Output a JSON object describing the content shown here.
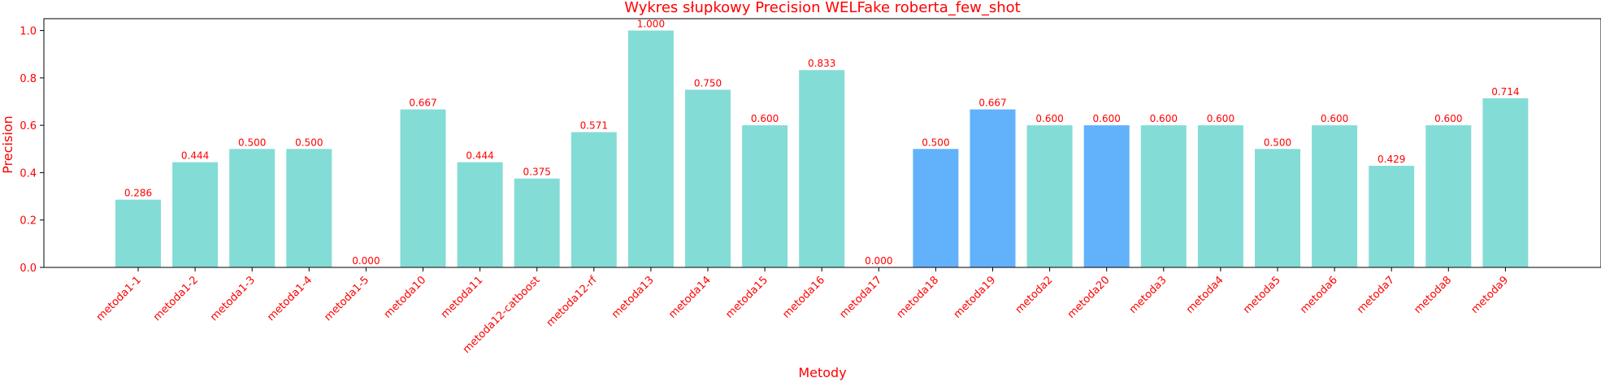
{
  "chart_data": {
    "type": "bar",
    "title": "Wykres słupkowy Precision WELFake roberta_few_shot",
    "xlabel": "Metody",
    "ylabel": "Precision",
    "ylim": [
      0,
      1.05
    ],
    "yticks": [
      "0.0",
      "0.2",
      "0.4",
      "0.6",
      "0.8",
      "1.0"
    ],
    "grid": false,
    "categories": [
      "metoda1-1",
      "metoda1-2",
      "metoda1-3",
      "metoda1-4",
      "metoda1-5",
      "metoda10",
      "metoda11",
      "metoda12-catboost",
      "metoda12-rf",
      "metoda13",
      "metoda14",
      "metoda15",
      "metoda16",
      "metoda17",
      "metoda18",
      "metoda19",
      "metoda2",
      "metoda20",
      "metoda3",
      "metoda4",
      "metoda5",
      "metoda6",
      "metoda7",
      "metoda8",
      "metoda9"
    ],
    "values": [
      0.286,
      0.444,
      0.5,
      0.5,
      0.0,
      0.667,
      0.444,
      0.375,
      0.571,
      1.0,
      0.75,
      0.6,
      0.833,
      0.0,
      0.5,
      0.667,
      0.6,
      0.6,
      0.6,
      0.6,
      0.5,
      0.6,
      0.429,
      0.6,
      0.714
    ],
    "value_labels": [
      "0.286",
      "0.444",
      "0.500",
      "0.500",
      "0.000",
      "0.667",
      "0.444",
      "0.375",
      "0.571",
      "1.000",
      "0.750",
      "0.600",
      "0.833",
      "0.000",
      "0.500",
      "0.667",
      "0.600",
      "0.600",
      "0.600",
      "0.600",
      "0.500",
      "0.600",
      "0.429",
      "0.600",
      "0.714"
    ],
    "highlighted": [
      "metoda18",
      "metoda19",
      "metoda20"
    ],
    "colors": {
      "default": "#84dcd6",
      "highlight": "#62b1fb",
      "text": "#ff0000",
      "axis": "#000000"
    }
  }
}
